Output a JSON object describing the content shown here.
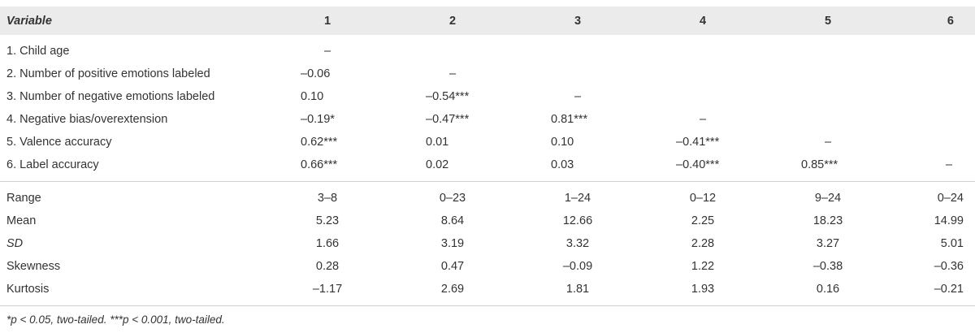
{
  "table": {
    "header": [
      "Variable",
      "1",
      "2",
      "3",
      "4",
      "5",
      "6"
    ],
    "correlations": [
      [
        "1. Child age",
        "–"
      ],
      [
        "2. Number of positive emotions labeled",
        "–0.06",
        "–"
      ],
      [
        "3. Number of negative emotions labeled",
        "0.10",
        "–0.54***",
        "–"
      ],
      [
        "4. Negative bias/overextension",
        "–0.19*",
        "–0.47***",
        "0.81***",
        "–"
      ],
      [
        "5. Valence accuracy",
        "0.62***",
        "0.01",
        "0.10",
        "–0.41***",
        "–"
      ],
      [
        "6. Label accuracy",
        "0.66***",
        "0.02",
        "0.03",
        "–0.40***",
        "0.85***",
        "–"
      ]
    ],
    "statistics": [
      [
        "Range",
        "3–8",
        "0–23",
        "1–24",
        "0–12",
        "9–24",
        "0–24"
      ],
      [
        "Mean",
        "5.23",
        "8.64",
        "12.66",
        "2.25",
        "18.23",
        "14.99"
      ],
      [
        "SD",
        "1.66",
        "3.19",
        "3.32",
        "2.28",
        "3.27",
        "5.01"
      ],
      [
        "Skewness",
        "0.28",
        "0.47",
        "–0.09",
        "1.22",
        "–0.38",
        "–0.36"
      ],
      [
        "Kurtosis",
        "–1.17",
        "2.69",
        "1.81",
        "1.93",
        "0.16",
        "–0.21"
      ]
    ]
  },
  "footnote": "*p < 0.05, two-tailed. ***p < 0.001, two-tailed."
}
